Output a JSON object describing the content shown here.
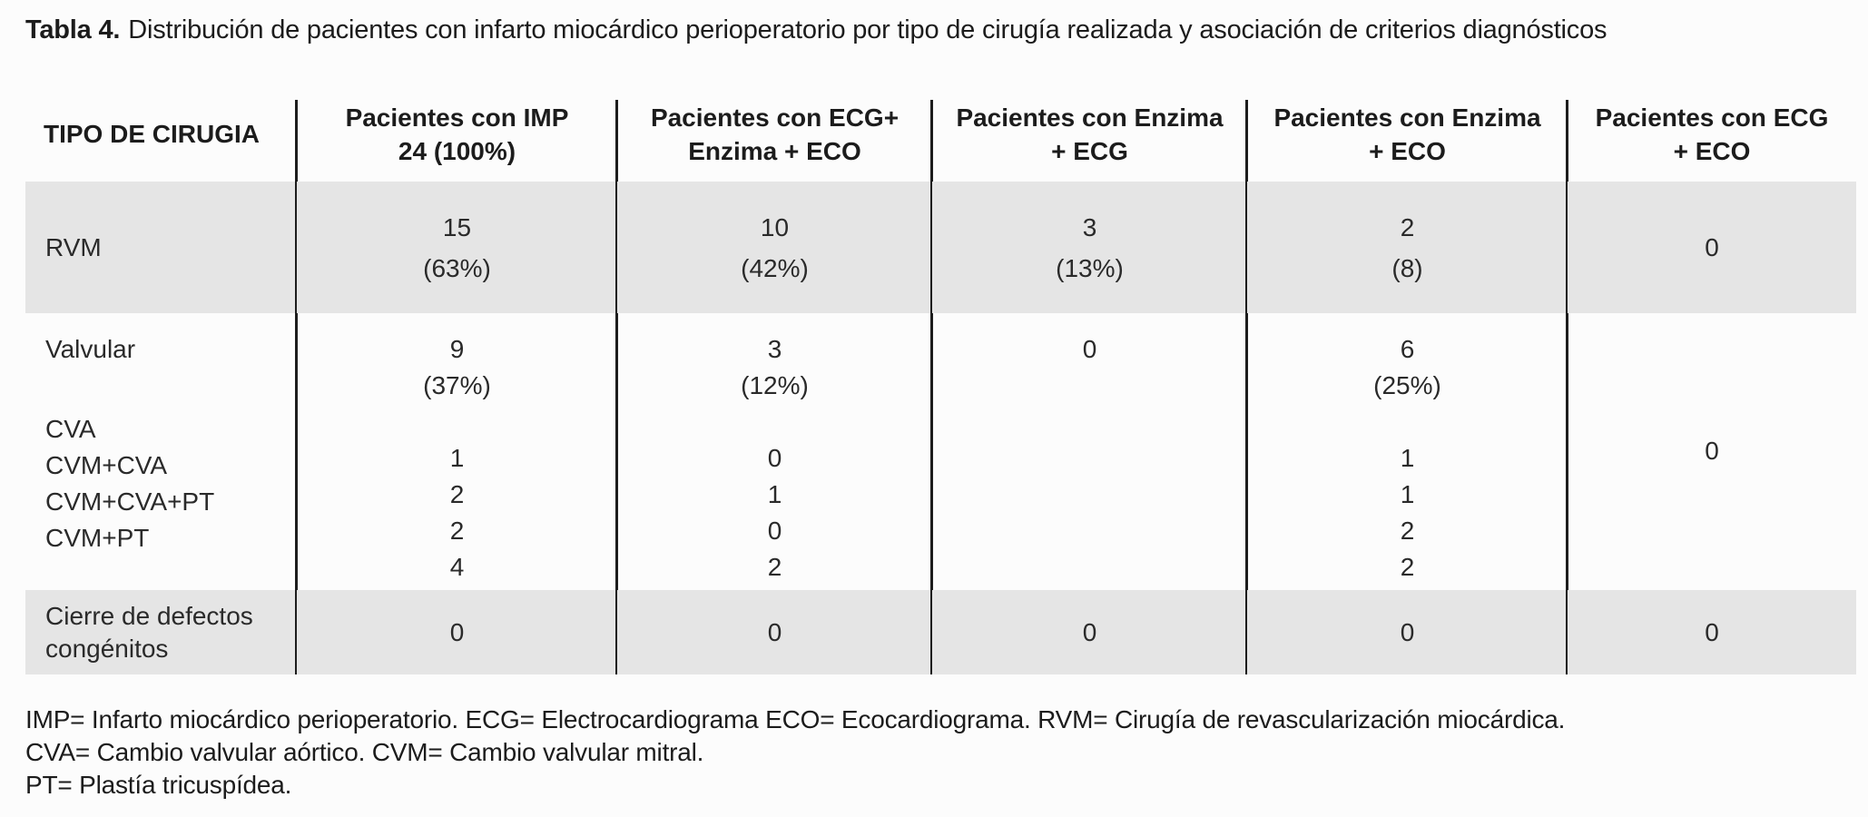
{
  "title": {
    "label": "Tabla 4.",
    "text": "Distribución de pacientes con infarto miocárdico perioperatorio por tipo de cirugía realizada y asociación de criterios diagnósticos"
  },
  "table": {
    "headers": [
      {
        "line1": "TIPO DE CIRUGIA",
        "line2": ""
      },
      {
        "line1": "Pacientes con IMP",
        "line2": "24 (100%)"
      },
      {
        "line1": "Pacientes con ECG+",
        "line2": "Enzima + ECO"
      },
      {
        "line1": "Pacientes con Enzima",
        "line2": "+ ECG"
      },
      {
        "line1": "Pacientes con Enzima",
        "line2": "+ ECO"
      },
      {
        "line1": "Pacientes con ECG",
        "line2": "+ ECO"
      }
    ],
    "rows": {
      "rvm": {
        "label": "RVM",
        "imp": "15",
        "imp_pct": "(63%)",
        "ecg_enzima_eco": "10",
        "ecg_enzima_eco_pct": "(42%)",
        "enzima_ecg": "3",
        "enzima_ecg_pct": "(13%)",
        "enzima_eco": "2",
        "enzima_eco_pct": "(8)",
        "ecg_eco": "0"
      },
      "valvular": {
        "label": "Valvular",
        "sub_labels": [
          "CVA",
          "CVM+CVA",
          "CVM+CVA+PT",
          "CVM+PT"
        ],
        "imp": "9",
        "imp_pct": "(37%)",
        "imp_sub": [
          "1",
          "2",
          "2",
          "4"
        ],
        "ecg_enzima_eco": "3",
        "ecg_enzima_eco_pct": "(12%)",
        "ecg_enzima_eco_sub": [
          "0",
          "1",
          "0",
          "2"
        ],
        "enzima_ecg": "0",
        "enzima_eco": "6",
        "enzima_eco_pct": "(25%)",
        "enzima_eco_sub": [
          "1",
          "1",
          "2",
          "2"
        ],
        "ecg_eco": "0"
      },
      "cierre": {
        "label_line1": "Cierre de defectos",
        "label_line2": "congénitos",
        "imp": "0",
        "ecg_enzima_eco": "0",
        "enzima_ecg": "0",
        "enzima_eco": "0",
        "ecg_eco": "0"
      }
    }
  },
  "footnotes": [
    "IMP= Infarto miocárdico perioperatorio. ECG= Electrocardiograma ECO= Ecocardiograma. RVM= Cirugía de revascularización miocárdica.",
    "CVA= Cambio valvular aórtico. CVM= Cambio valvular mitral.",
    "PT= Plastía tricuspídea."
  ],
  "colors": {
    "row_shade": "#e5e5e5",
    "text": "#1c1c1c",
    "divider": "#1d1d1d",
    "background": "#fcfcfc"
  }
}
